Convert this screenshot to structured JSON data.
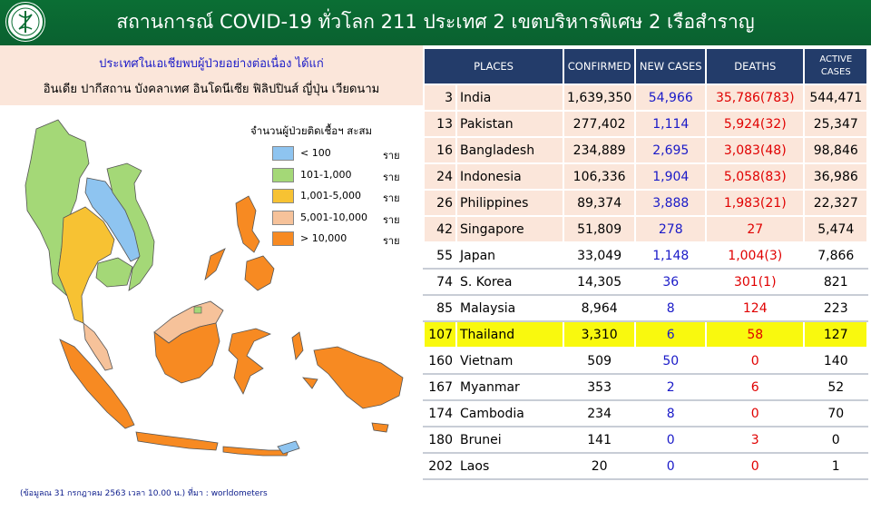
{
  "header": {
    "title": "สถานการณ์ COVID-19 ทั่วโลก 211 ประเทศ 2 เขตบริหารพิเศษ 2 เรือสำราญ",
    "logo": "department-of-disease-control-emblem"
  },
  "intro": {
    "line1": "ประเทศในเอเชียพบผู้ป่วยอย่างต่อเนื่อง  ได้แก่",
    "line2": "อินเดีย ปากีสถาน บังคลาเทศ  อินโดนีเซีย ฟิลิปปินส์ ญี่ปุ่น เวียดนาม"
  },
  "legend": {
    "title": "จำนวนผู้ป่วยติดเชื้อฯ สะสม",
    "items": [
      {
        "range": "< 100",
        "unit": "ราย",
        "color": "#8ec4f0"
      },
      {
        "range": "101-1,000",
        "unit": "ราย",
        "color": "#a4d877"
      },
      {
        "range": "1,001-5,000",
        "unit": "ราย",
        "color": "#f7c233"
      },
      {
        "range": "5,001-10,000",
        "unit": "ราย",
        "color": "#f6c29a"
      },
      {
        "range": "> 10,000",
        "unit": "ราย",
        "color": "#f78a22"
      }
    ]
  },
  "source": "(ข้อมูลณ 31 กรกฎาคม 2563 เวลา 10.00 น.) ที่มา : worldometers",
  "table": {
    "headers": {
      "places": "PLACES",
      "confirmed": "CONFIRMED",
      "new_cases": "NEW  CASES",
      "deaths": "DEATHS",
      "active_line1": "ACTIVE",
      "active_line2": "CASES"
    },
    "rows": [
      {
        "rank": "3",
        "place": "India",
        "confirmed": "1,639,350",
        "new": "54,966",
        "deaths": "35,786(783)",
        "active": "544,471",
        "style": "pink"
      },
      {
        "rank": "13",
        "place": "Pakistan",
        "confirmed": "277,402",
        "new": "1,114",
        "deaths": "5,924(32)",
        "active": "25,347",
        "style": "pink"
      },
      {
        "rank": "16",
        "place": "Bangladesh",
        "confirmed": "234,889",
        "new": "2,695",
        "deaths": "3,083(48)",
        "active": "98,846",
        "style": "pink"
      },
      {
        "rank": "24",
        "place": "Indonesia",
        "confirmed": "106,336",
        "new": "1,904",
        "deaths": "5,058(83)",
        "active": "36,986",
        "style": "pink"
      },
      {
        "rank": "26",
        "place": "Philippines",
        "confirmed": "89,374",
        "new": "3,888",
        "deaths": "1,983(21)",
        "active": "22,327",
        "style": "pink"
      },
      {
        "rank": "42",
        "place": "Singapore",
        "confirmed": "51,809",
        "new": "278",
        "deaths": "27",
        "active": "5,474",
        "style": "pink"
      },
      {
        "rank": "55",
        "place": "Japan",
        "confirmed": "33,049",
        "new": "1,148",
        "deaths": "1,004(3)",
        "active": "7,866",
        "style": "plain"
      },
      {
        "rank": "74",
        "place": "S. Korea",
        "confirmed": "14,305",
        "new": "36",
        "deaths": "301(1)",
        "active": "821",
        "style": "plain"
      },
      {
        "rank": "85",
        "place": "Malaysia",
        "confirmed": "8,964",
        "new": "8",
        "deaths": "124",
        "active": "223",
        "style": "plain"
      },
      {
        "rank": "107",
        "place": "Thailand",
        "confirmed": "3,310",
        "new": "6",
        "deaths": "58",
        "active": "127",
        "style": "hl"
      },
      {
        "rank": "160",
        "place": "Vietnam",
        "confirmed": "509",
        "new": "50",
        "deaths": "0",
        "active": "140",
        "style": "plain"
      },
      {
        "rank": "167",
        "place": "Myanmar",
        "confirmed": "353",
        "new": "2",
        "deaths": "6",
        "active": "52",
        "style": "plain"
      },
      {
        "rank": "174",
        "place": "Cambodia",
        "confirmed": "234",
        "new": "8",
        "deaths": "0",
        "active": "70",
        "style": "plain"
      },
      {
        "rank": "180",
        "place": "Brunei",
        "confirmed": "141",
        "new": "0",
        "deaths": "3",
        "active": "0",
        "style": "plain"
      },
      {
        "rank": "202",
        "place": "Laos",
        "confirmed": "20",
        "new": "0",
        "deaths": "0",
        "active": "1",
        "style": "plain"
      }
    ]
  }
}
